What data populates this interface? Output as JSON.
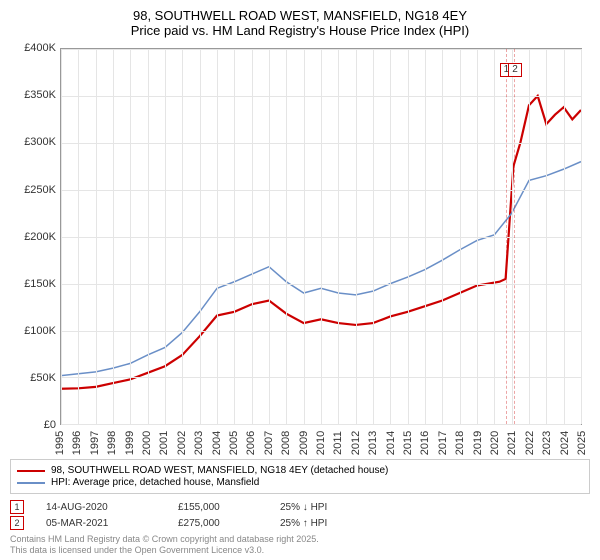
{
  "title_line1": "98, SOUTHWELL ROAD WEST, MANSFIELD, NG18 4EY",
  "title_line2": "Price paid vs. HM Land Registry's House Price Index (HPI)",
  "chart": {
    "type": "line",
    "background_color": "#ffffff",
    "grid_color": "#e5e5e5",
    "border_color": "#999999",
    "ylim": [
      0,
      400000
    ],
    "ytick_step": 50000,
    "y_labels": [
      "£0",
      "£50K",
      "£100K",
      "£150K",
      "£200K",
      "£250K",
      "£300K",
      "£350K",
      "£400K"
    ],
    "xlim": [
      1995,
      2025
    ],
    "x_labels": [
      "1995",
      "1996",
      "1997",
      "1998",
      "1999",
      "2000",
      "2001",
      "2002",
      "2003",
      "2004",
      "2005",
      "2006",
      "2007",
      "2008",
      "2009",
      "2010",
      "2011",
      "2012",
      "2013",
      "2014",
      "2015",
      "2016",
      "2017",
      "2018",
      "2019",
      "2020",
      "2021",
      "2022",
      "2023",
      "2024",
      "2025"
    ],
    "title_fontsize": 13,
    "label_fontsize": 11,
    "series": [
      {
        "name": "price_paid",
        "color": "#cc0000",
        "width": 2.2,
        "points": [
          [
            1995,
            38000
          ],
          [
            1996,
            38500
          ],
          [
            1997,
            40000
          ],
          [
            1998,
            44000
          ],
          [
            1999,
            48000
          ],
          [
            2000,
            55000
          ],
          [
            2001,
            62000
          ],
          [
            2002,
            74000
          ],
          [
            2003,
            94000
          ],
          [
            2004,
            116000
          ],
          [
            2005,
            120000
          ],
          [
            2006,
            128000
          ],
          [
            2007,
            132000
          ],
          [
            2008,
            118000
          ],
          [
            2009,
            108000
          ],
          [
            2010,
            112000
          ],
          [
            2011,
            108000
          ],
          [
            2012,
            106000
          ],
          [
            2013,
            108000
          ],
          [
            2014,
            115000
          ],
          [
            2015,
            120000
          ],
          [
            2016,
            126000
          ],
          [
            2017,
            132000
          ],
          [
            2018,
            140000
          ],
          [
            2019,
            148000
          ],
          [
            2020.3,
            152000
          ],
          [
            2020.65,
            155000
          ],
          [
            2021.1,
            275000
          ],
          [
            2021.5,
            300000
          ],
          [
            2022,
            340000
          ],
          [
            2022.5,
            350000
          ],
          [
            2023,
            320000
          ],
          [
            2023.5,
            330000
          ],
          [
            2024,
            338000
          ],
          [
            2024.5,
            325000
          ],
          [
            2025,
            335000
          ]
        ]
      },
      {
        "name": "hpi",
        "color": "#6a8fc7",
        "width": 1.5,
        "points": [
          [
            1995,
            52000
          ],
          [
            1996,
            54000
          ],
          [
            1997,
            56000
          ],
          [
            1998,
            60000
          ],
          [
            1999,
            65000
          ],
          [
            2000,
            74000
          ],
          [
            2001,
            82000
          ],
          [
            2002,
            98000
          ],
          [
            2003,
            120000
          ],
          [
            2004,
            145000
          ],
          [
            2005,
            152000
          ],
          [
            2006,
            160000
          ],
          [
            2007,
            168000
          ],
          [
            2008,
            152000
          ],
          [
            2009,
            140000
          ],
          [
            2010,
            145000
          ],
          [
            2011,
            140000
          ],
          [
            2012,
            138000
          ],
          [
            2013,
            142000
          ],
          [
            2014,
            150000
          ],
          [
            2015,
            157000
          ],
          [
            2016,
            165000
          ],
          [
            2017,
            175000
          ],
          [
            2018,
            186000
          ],
          [
            2019,
            196000
          ],
          [
            2020,
            202000
          ],
          [
            2021,
            225000
          ],
          [
            2022,
            260000
          ],
          [
            2023,
            265000
          ],
          [
            2024,
            272000
          ],
          [
            2025,
            280000
          ]
        ]
      }
    ],
    "markers": [
      {
        "num": "1",
        "x": 2020.65
      },
      {
        "num": "2",
        "x": 2021.15
      }
    ]
  },
  "legend": {
    "items": [
      {
        "color": "#cc0000",
        "label": "98, SOUTHWELL ROAD WEST, MANSFIELD, NG18 4EY (detached house)"
      },
      {
        "color": "#6a8fc7",
        "label": "HPI: Average price, detached house, Mansfield"
      }
    ]
  },
  "events": [
    {
      "num": "1",
      "date": "14-AUG-2020",
      "price": "£155,000",
      "delta": "25% ↓ HPI"
    },
    {
      "num": "2",
      "date": "05-MAR-2021",
      "price": "£275,000",
      "delta": "25% ↑ HPI"
    }
  ],
  "footer_line1": "Contains HM Land Registry data © Crown copyright and database right 2025.",
  "footer_line2": "This data is licensed under the Open Government Licence v3.0."
}
